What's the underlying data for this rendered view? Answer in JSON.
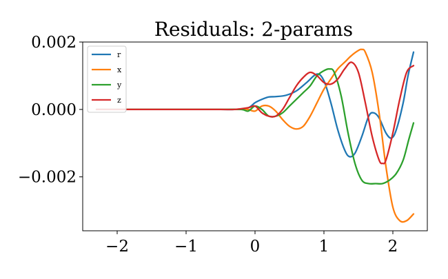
{
  "chart_data": {
    "type": "line",
    "title": "Residuals: 2-params",
    "xlabel": "",
    "ylabel": "",
    "xlim": [
      -2.5,
      2.5
    ],
    "ylim": [
      -0.0036,
      0.002
    ],
    "x_ticks": [
      -2,
      -1,
      0,
      1,
      2
    ],
    "x_tick_labels": [
      "−2",
      "−1",
      "0",
      "1",
      "2"
    ],
    "y_ticks": [
      -0.002,
      0.0,
      0.002
    ],
    "y_tick_labels": [
      "−0.002",
      "0.000",
      "0.002"
    ],
    "grid": false,
    "legend_position": "upper-left",
    "series": [
      {
        "name": "r",
        "color": "#1f77b4",
        "x": [
          -2.3,
          -2.0,
          -1.5,
          -1.0,
          -0.5,
          -0.3,
          -0.1,
          0.0,
          0.1,
          0.2,
          0.3,
          0.45,
          0.6,
          0.75,
          0.9,
          1.0,
          1.1,
          1.2,
          1.3,
          1.37,
          1.45,
          1.55,
          1.65,
          1.72,
          1.8,
          1.9,
          1.98,
          2.05,
          2.15,
          2.22,
          2.3
        ],
        "y": [
          0.0,
          0.0,
          0.0,
          0.0,
          0.0,
          0.0,
          5e-05,
          0.0002,
          0.0003,
          0.00037,
          0.00038,
          0.00042,
          0.00055,
          0.0008,
          0.00105,
          0.00085,
          0.0002,
          -0.0006,
          -0.0012,
          -0.0014,
          -0.0013,
          -0.0008,
          -0.0002,
          -0.0001,
          -0.00025,
          -0.0007,
          -0.00085,
          -0.0006,
          0.0002,
          0.001,
          0.0017
        ]
      },
      {
        "name": "x",
        "color": "#ff7f0e",
        "x": [
          -2.3,
          -2.0,
          -1.5,
          -1.0,
          -0.5,
          -0.2,
          -0.1,
          0.0,
          0.1,
          0.2,
          0.3,
          0.4,
          0.5,
          0.6,
          0.7,
          0.8,
          0.9,
          1.0,
          1.1,
          1.2,
          1.3,
          1.4,
          1.5,
          1.55,
          1.6,
          1.7,
          1.8,
          1.9,
          2.0,
          2.1,
          2.2,
          2.3
        ],
        "y": [
          0.0,
          0.0,
          0.0,
          0.0,
          0.0,
          0.0,
          0.0,
          -5e-05,
          0.0001,
          0.0001,
          -5e-05,
          -0.0003,
          -0.0005,
          -0.00058,
          -0.0005,
          -0.0002,
          0.0002,
          0.0006,
          0.0009,
          0.0012,
          0.0014,
          0.0016,
          0.00175,
          0.00178,
          0.0017,
          0.0011,
          -0.0001,
          -0.0017,
          -0.0029,
          -0.0033,
          -0.0033,
          -0.0031
        ]
      },
      {
        "name": "y",
        "color": "#2ca02c",
        "x": [
          -2.3,
          -2.0,
          -1.5,
          -1.0,
          -0.5,
          -0.2,
          -0.1,
          0.0,
          0.1,
          0.2,
          0.3,
          0.4,
          0.5,
          0.6,
          0.7,
          0.8,
          0.9,
          1.0,
          1.08,
          1.15,
          1.25,
          1.35,
          1.45,
          1.55,
          1.65,
          1.75,
          1.85,
          1.95,
          2.05,
          2.15,
          2.23,
          2.3
        ],
        "y": [
          0.0,
          0.0,
          0.0,
          0.0,
          0.0,
          0.0,
          -5e-05,
          0.0001,
          0.0,
          -0.0002,
          -0.0002,
          -0.0001,
          0.0001,
          0.0003,
          0.0005,
          0.0007,
          0.001,
          0.00115,
          0.0012,
          0.0011,
          0.0004,
          -0.0007,
          -0.0016,
          -0.0021,
          -0.0022,
          -0.0022,
          -0.0022,
          -0.0021,
          -0.0019,
          -0.0015,
          -0.0009,
          -0.0004
        ]
      },
      {
        "name": "z",
        "color": "#d62728",
        "x": [
          -2.3,
          -2.0,
          -1.5,
          -1.0,
          -0.5,
          -0.3,
          -0.1,
          0.0,
          0.1,
          0.2,
          0.3,
          0.4,
          0.5,
          0.6,
          0.7,
          0.8,
          0.9,
          1.0,
          1.1,
          1.2,
          1.3,
          1.4,
          1.5,
          1.6,
          1.7,
          1.8,
          1.85,
          1.9,
          2.0,
          2.1,
          2.2,
          2.3
        ],
        "y": [
          0.0,
          0.0,
          0.0,
          0.0,
          0.0,
          0.0,
          5e-05,
          0.0001,
          -0.0001,
          -0.0002,
          -0.0002,
          0.0,
          0.00035,
          0.0007,
          0.00095,
          0.0011,
          0.001,
          0.0008,
          0.00075,
          0.0009,
          0.0012,
          0.0014,
          0.0011,
          0.0002,
          -0.0008,
          -0.0015,
          -0.0016,
          -0.0015,
          -0.0007,
          0.0003,
          0.0011,
          0.0013
        ]
      }
    ]
  }
}
